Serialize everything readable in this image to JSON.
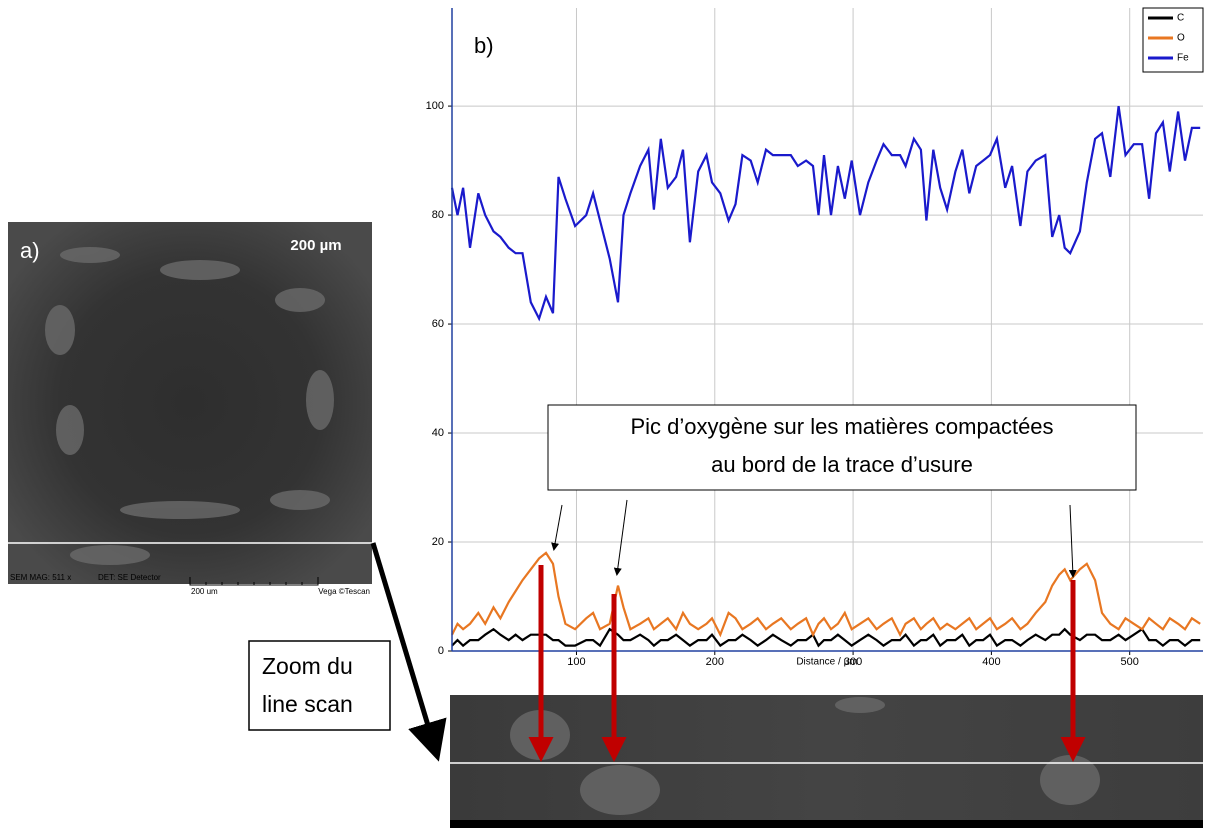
{
  "chart_data": {
    "type": "line",
    "panel_label": "b)",
    "x_label": "Distance / µm",
    "annotation": [
      "Pic d’oxygène sur les matières compactées",
      "au bord de la trace d’usure"
    ],
    "xlim": [
      10,
      553
    ],
    "ylim": [
      0,
      118
    ],
    "xticks": [
      100,
      200,
      300,
      400,
      500
    ],
    "yticks": [
      0,
      20,
      40,
      60,
      80,
      100
    ],
    "grid": true,
    "legend": "upper right",
    "x": [
      10,
      14,
      18,
      23,
      29,
      34,
      40,
      45,
      51,
      56,
      61,
      67,
      73,
      78,
      83,
      87,
      92,
      99,
      107,
      112,
      117,
      124,
      130,
      134,
      139,
      146,
      152,
      156,
      161,
      166,
      172,
      177,
      182,
      188,
      194,
      198,
      204,
      210,
      215,
      220,
      226,
      231,
      237,
      242,
      248,
      255,
      260,
      266,
      271,
      275,
      279,
      284,
      289,
      294,
      299,
      305,
      311,
      317,
      322,
      328,
      334,
      338,
      344,
      349,
      353,
      358,
      363,
      368,
      374,
      379,
      384,
      389,
      394,
      399,
      404,
      410,
      415,
      421,
      426,
      432,
      439,
      444,
      449,
      453,
      457,
      464,
      469,
      475,
      480,
      486,
      492,
      497,
      503,
      509,
      514,
      519,
      524,
      529,
      535,
      540,
      545,
      551
    ],
    "series": [
      {
        "name": "C",
        "color": "#000000",
        "values": [
          1,
          2,
          1,
          2,
          2,
          3,
          4,
          3,
          2,
          3,
          2,
          3,
          3,
          3,
          2,
          2,
          1,
          1,
          2,
          2,
          1,
          4,
          3,
          2,
          2,
          3,
          2,
          1,
          2,
          2,
          3,
          2,
          1,
          2,
          2,
          3,
          1,
          2,
          2,
          3,
          2,
          1,
          2,
          3,
          2,
          1,
          2,
          2,
          3,
          1,
          2,
          2,
          3,
          2,
          1,
          2,
          3,
          2,
          1,
          2,
          2,
          3,
          1,
          2,
          2,
          3,
          1,
          2,
          2,
          3,
          1,
          2,
          2,
          3,
          1,
          2,
          2,
          1,
          2,
          3,
          2,
          3,
          3,
          4,
          3,
          2,
          3,
          3,
          2,
          2,
          3,
          2,
          3,
          4,
          2,
          2,
          1,
          2,
          2,
          1,
          2,
          2
        ]
      },
      {
        "name": "O",
        "color": "#e87722",
        "values": [
          3,
          5,
          4,
          5,
          7,
          5,
          8,
          6,
          9,
          11,
          13,
          15,
          17,
          18,
          16,
          10,
          5,
          4,
          6,
          7,
          4,
          5,
          12,
          8,
          4,
          5,
          6,
          4,
          5,
          6,
          4,
          7,
          5,
          4,
          5,
          6,
          3,
          7,
          6,
          4,
          5,
          6,
          4,
          5,
          6,
          4,
          5,
          6,
          3,
          5,
          6,
          4,
          5,
          7,
          4,
          5,
          6,
          4,
          5,
          6,
          3,
          5,
          6,
          4,
          5,
          6,
          4,
          5,
          4,
          5,
          6,
          4,
          5,
          6,
          4,
          5,
          6,
          4,
          5,
          7,
          9,
          12,
          14,
          15,
          13,
          15,
          16,
          13,
          7,
          5,
          4,
          6,
          5,
          4,
          6,
          5,
          4,
          6,
          5,
          4,
          6,
          5
        ]
      },
      {
        "name": "Fe",
        "color": "#1a1acc",
        "values": [
          85,
          80,
          85,
          74,
          84,
          80,
          77,
          76,
          74,
          73,
          73,
          64,
          61,
          65,
          62,
          87,
          83,
          78,
          80,
          84,
          79,
          72,
          64,
          80,
          84,
          89,
          92,
          81,
          94,
          85,
          87,
          92,
          75,
          88,
          91,
          86,
          84,
          79,
          82,
          91,
          90,
          86,
          92,
          91,
          91,
          91,
          89,
          90,
          89,
          80,
          91,
          80,
          89,
          83,
          90,
          80,
          86,
          90,
          93,
          91,
          91,
          89,
          94,
          92,
          79,
          92,
          85,
          81,
          88,
          92,
          84,
          89,
          90,
          91,
          94,
          85,
          89,
          78,
          88,
          90,
          91,
          76,
          80,
          74,
          73,
          77,
          86,
          94,
          95,
          87,
          100,
          91,
          93,
          93,
          83,
          95,
          97,
          88,
          99,
          90,
          96,
          96
        ]
      }
    ]
  },
  "sem_panel": {
    "label": "a)",
    "scale": "200 µm",
    "footer": [
      "SEM MAG: 511 x",
      "DET: SE Detector",
      "200 um",
      "Vega ©Tescan"
    ]
  },
  "zoom_box": {
    "lines": [
      "Zoom du",
      "line scan"
    ]
  }
}
